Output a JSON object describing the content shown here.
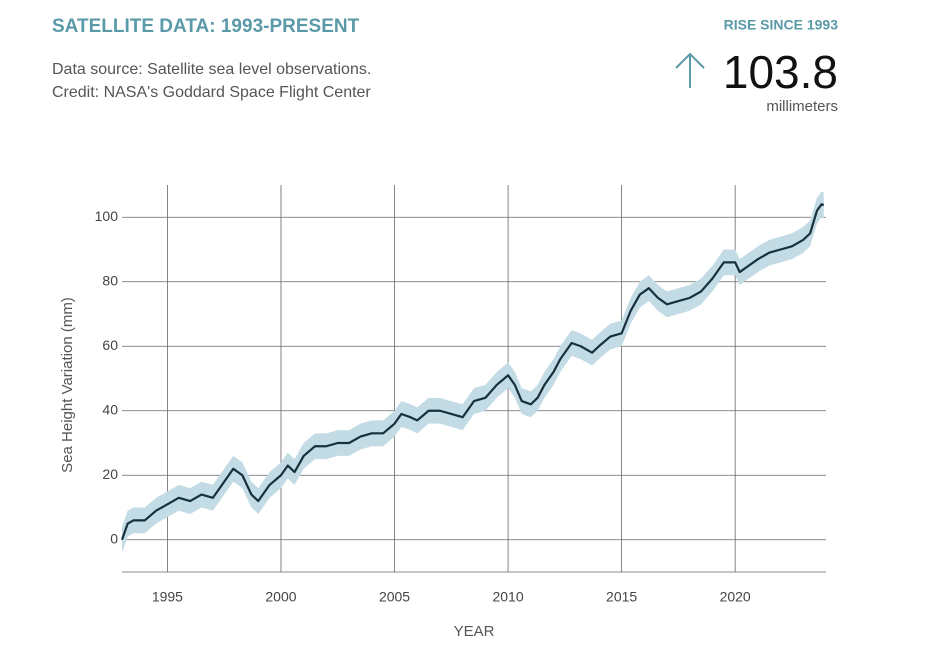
{
  "header": {
    "title": "SATELLITE DATA: 1993-PRESENT",
    "source": "Data source: Satellite sea level observations.",
    "credit": "Credit: NASA's Goddard Space Flight Center",
    "rise_label": "RISE SINCE 1993",
    "rise_value": "103.8",
    "rise_unit": "millimeters"
  },
  "chart_data": {
    "type": "line",
    "x_label": "YEAR",
    "y_label": "Sea Height Variation (mm)",
    "color": "#17303b",
    "band_color": "#c3dbe5",
    "uncertainty": 4,
    "x": [
      1993.0,
      1993.25,
      1993.5,
      1994.0,
      1994.5,
      1995.0,
      1995.5,
      1996.0,
      1996.5,
      1997.0,
      1997.5,
      1997.9,
      1998.3,
      1998.7,
      1999.0,
      1999.5,
      2000.0,
      2000.3,
      2000.6,
      2001.0,
      2001.5,
      2002.0,
      2002.5,
      2003.0,
      2003.5,
      2004.0,
      2004.5,
      2005.0,
      2005.3,
      2005.7,
      2006.0,
      2006.5,
      2007.0,
      2007.5,
      2008.0,
      2008.5,
      2009.0,
      2009.5,
      2010.0,
      2010.3,
      2010.6,
      2011.0,
      2011.3,
      2011.6,
      2012.0,
      2012.3,
      2012.8,
      2013.2,
      2013.7,
      2014.0,
      2014.5,
      2015.0,
      2015.4,
      2015.8,
      2016.2,
      2016.6,
      2017.0,
      2017.5,
      2018.0,
      2018.5,
      2019.0,
      2019.5,
      2020.0,
      2020.2,
      2020.6,
      2021.0,
      2021.5,
      2022.0,
      2022.5,
      2023.0,
      2023.3,
      2023.6,
      2023.8,
      2023.9
    ],
    "values": [
      0,
      5,
      6,
      6,
      9,
      11,
      13,
      12,
      14,
      13,
      18,
      22,
      20,
      14,
      12,
      17,
      20,
      23,
      21,
      26,
      29,
      29,
      30,
      30,
      32,
      33,
      33,
      36,
      39,
      38,
      37,
      40,
      40,
      39,
      38,
      43,
      44,
      48,
      51,
      48,
      43,
      42,
      44,
      48,
      52,
      56,
      61,
      60,
      58,
      60,
      63,
      64,
      71,
      76,
      78,
      75,
      73,
      74,
      75,
      77,
      81,
      86,
      86,
      83,
      85,
      87,
      89,
      90,
      91,
      93,
      95,
      102,
      104,
      103.8
    ],
    "xlim": [
      1993,
      2024
    ],
    "ylim": [
      -10,
      110
    ],
    "xticks": [
      1995,
      2000,
      2005,
      2010,
      2015,
      2020
    ],
    "yticks": [
      0,
      20,
      40,
      60,
      80,
      100
    ],
    "grid": true
  }
}
